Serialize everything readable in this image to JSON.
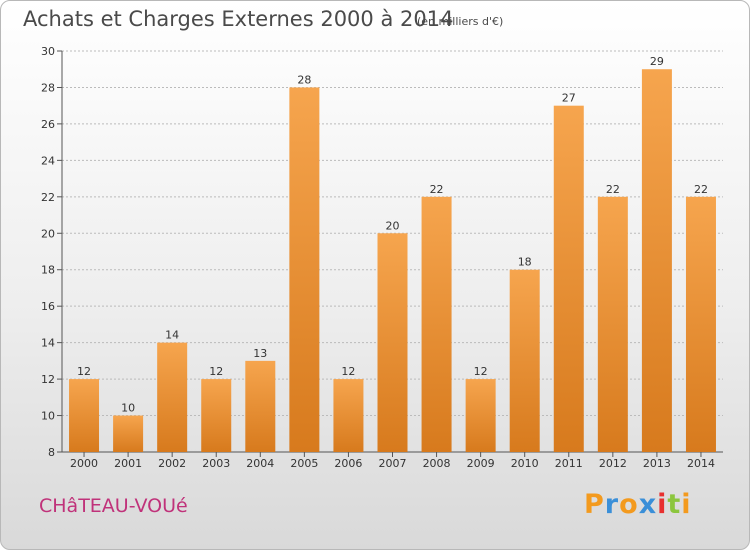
{
  "header": {
    "title": "Achats et Charges Externes 2000 à 2014",
    "subtitle": "(en milliers d'€)"
  },
  "footer": {
    "commune": "CHâTEAU-VOUé",
    "logo_letters": [
      "P",
      "r",
      "o",
      "x",
      "i",
      "t",
      "i"
    ],
    "logo_colors": [
      "#f39a1e",
      "#3a8fd8",
      "#f39a1e",
      "#3a8fd8",
      "#e8302f",
      "#8cc63e",
      "#f39a1e"
    ]
  },
  "colors": {
    "bar_light": "#f6a54e",
    "bar_dark": "#d77a1d",
    "grid": "#bbbbbb",
    "axis": "#555555"
  },
  "chart_data": {
    "type": "bar",
    "title": "Achats et Charges Externes 2000 à 2014",
    "subtitle": "(en milliers d'€)",
    "xlabel": "",
    "ylabel": "",
    "categories": [
      "2000",
      "2001",
      "2002",
      "2003",
      "2004",
      "2005",
      "2006",
      "2007",
      "2008",
      "2009",
      "2010",
      "2011",
      "2012",
      "2013",
      "2014"
    ],
    "values": [
      12,
      10,
      14,
      12,
      13,
      28,
      12,
      20,
      22,
      12,
      18,
      27,
      22,
      29,
      22
    ],
    "ylim": [
      8,
      30
    ],
    "yticks": [
      8,
      10,
      12,
      14,
      16,
      18,
      20,
      22,
      24,
      26,
      28,
      30
    ],
    "grid": true,
    "legend": "none"
  }
}
